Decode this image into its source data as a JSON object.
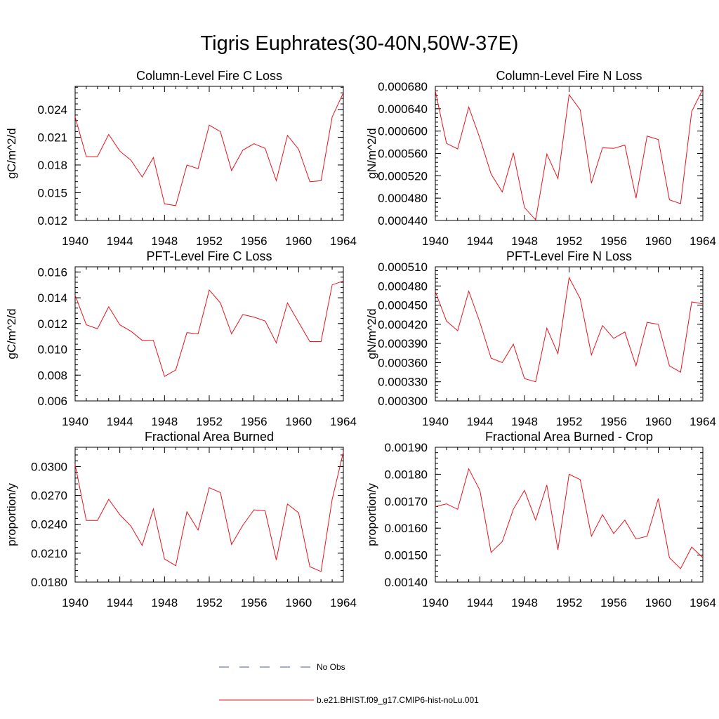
{
  "title": "Tigris Euphrates(30-40N,50W-37E)",
  "colors": {
    "model_line": "#e8141c",
    "obs_line": "#4a5aa8",
    "axis": "#000000"
  },
  "legend": {
    "items": [
      {
        "label": "No Obs",
        "style": "dashed",
        "color": "#4a5aa8"
      },
      {
        "label": "b.e21.BHIST.f09_g17.CMIP6-hist-noLu.001",
        "style": "solid",
        "color": "#e8141c"
      }
    ]
  },
  "chart_data": [
    {
      "type": "line",
      "title": "Column-Level Fire C Loss",
      "ylabel": "gC/m^2/d",
      "xlim": [
        1940,
        1964
      ],
      "ylim": [
        0.012,
        0.0265
      ],
      "xticks": [
        "1940",
        "1944",
        "1948",
        "1952",
        "1956",
        "1960",
        "1964"
      ],
      "yticks": [
        "0.012",
        "0.015",
        "0.018",
        "0.021",
        "0.024"
      ],
      "x": [
        1940,
        1941,
        1942,
        1943,
        1944,
        1945,
        1946,
        1947,
        1948,
        1949,
        1950,
        1951,
        1952,
        1953,
        1954,
        1955,
        1956,
        1957,
        1958,
        1959,
        1960,
        1961,
        1962,
        1963,
        1964
      ],
      "series": [
        {
          "name": "b.e21.BHIST.f09_g17.CMIP6-hist-noLu.001",
          "values": [
            0.0232,
            0.0189,
            0.0189,
            0.0213,
            0.0195,
            0.0185,
            0.0167,
            0.0188,
            0.0138,
            0.0136,
            0.018,
            0.0176,
            0.0223,
            0.0216,
            0.0174,
            0.0196,
            0.0203,
            0.0198,
            0.0163,
            0.0212,
            0.0197,
            0.0162,
            0.0163,
            0.0232,
            0.0258
          ]
        }
      ]
    },
    {
      "type": "line",
      "title": "Column-Level Fire N Loss",
      "ylabel": "gN/m^2/d",
      "xlim": [
        1940,
        1964
      ],
      "ylim": [
        0.00044,
        0.00068
      ],
      "xticks": [
        "1940",
        "1944",
        "1948",
        "1952",
        "1956",
        "1960",
        "1964"
      ],
      "yticks": [
        "0.000440",
        "0.000480",
        "0.000520",
        "0.000560",
        "0.000600",
        "0.000640",
        "0.000680"
      ],
      "x": [
        1940,
        1941,
        1942,
        1943,
        1944,
        1945,
        1946,
        1947,
        1948,
        1949,
        1950,
        1951,
        1952,
        1953,
        1954,
        1955,
        1956,
        1957,
        1958,
        1959,
        1960,
        1961,
        1962,
        1963,
        1964
      ],
      "series": [
        {
          "name": "b.e21.BHIST.f09_g17.CMIP6-hist-noLu.001",
          "values": [
            0.000672,
            0.000578,
            0.000568,
            0.000643,
            0.000587,
            0.000523,
            0.000491,
            0.000561,
            0.000463,
            0.000441,
            0.000559,
            0.000515,
            0.000665,
            0.000638,
            0.000507,
            0.00057,
            0.000569,
            0.000575,
            0.00048,
            0.000591,
            0.000585,
            0.000477,
            0.00047,
            0.000635,
            0.000675
          ]
        }
      ]
    },
    {
      "type": "line",
      "title": "PFT-Level Fire C Loss",
      "ylabel": "gC/m^2/d",
      "xlim": [
        1940,
        1964
      ],
      "ylim": [
        0.006,
        0.0164
      ],
      "xticks": [
        "1940",
        "1944",
        "1948",
        "1952",
        "1956",
        "1960",
        "1964"
      ],
      "yticks": [
        "0.006",
        "0.008",
        "0.010",
        "0.012",
        "0.014",
        "0.016"
      ],
      "x": [
        1940,
        1941,
        1942,
        1943,
        1944,
        1945,
        1946,
        1947,
        1948,
        1949,
        1950,
        1951,
        1952,
        1953,
        1954,
        1955,
        1956,
        1957,
        1958,
        1959,
        1960,
        1961,
        1962,
        1963,
        1964
      ],
      "series": [
        {
          "name": "b.e21.BHIST.f09_g17.CMIP6-hist-noLu.001",
          "values": [
            0.0142,
            0.0119,
            0.0116,
            0.0133,
            0.0119,
            0.0114,
            0.0107,
            0.0107,
            0.0079,
            0.0084,
            0.0113,
            0.0112,
            0.0146,
            0.0136,
            0.0112,
            0.0127,
            0.0125,
            0.0122,
            0.0105,
            0.0136,
            0.0121,
            0.0106,
            0.0106,
            0.015,
            0.0153
          ]
        }
      ]
    },
    {
      "type": "line",
      "title": "PFT-Level Fire N Loss",
      "ylabel": "gN/m^2/d",
      "xlim": [
        1940,
        1964
      ],
      "ylim": [
        0.0003,
        0.00051
      ],
      "xticks": [
        "1940",
        "1944",
        "1948",
        "1952",
        "1956",
        "1960",
        "1964"
      ],
      "yticks": [
        "0.000300",
        "0.000330",
        "0.000360",
        "0.000390",
        "0.000420",
        "0.000450",
        "0.000480",
        "0.000510"
      ],
      "x": [
        1940,
        1941,
        1942,
        1943,
        1944,
        1945,
        1946,
        1947,
        1948,
        1949,
        1950,
        1951,
        1952,
        1953,
        1954,
        1955,
        1956,
        1957,
        1958,
        1959,
        1960,
        1961,
        1962,
        1963,
        1964
      ],
      "series": [
        {
          "name": "b.e21.BHIST.f09_g17.CMIP6-hist-noLu.001",
          "values": [
            0.000471,
            0.000425,
            0.00041,
            0.000472,
            0.000423,
            0.000367,
            0.00036,
            0.000389,
            0.000335,
            0.00033,
            0.000414,
            0.000374,
            0.000493,
            0.00046,
            0.000372,
            0.000418,
            0.000398,
            0.000408,
            0.000355,
            0.000423,
            0.00042,
            0.000355,
            0.000345,
            0.000455,
            0.000452
          ]
        }
      ]
    },
    {
      "type": "line",
      "title": "Fractional Area Burned",
      "ylabel": "proportion/y",
      "xlim": [
        1940,
        1964
      ],
      "ylim": [
        0.018,
        0.032
      ],
      "xticks": [
        "1940",
        "1944",
        "1948",
        "1952",
        "1956",
        "1960",
        "1964"
      ],
      "yticks": [
        "0.0180",
        "0.0210",
        "0.0240",
        "0.0270",
        "0.0300"
      ],
      "x": [
        1940,
        1941,
        1942,
        1943,
        1944,
        1945,
        1946,
        1947,
        1948,
        1949,
        1950,
        1951,
        1952,
        1953,
        1954,
        1955,
        1956,
        1957,
        1958,
        1959,
        1960,
        1961,
        1962,
        1963,
        1964
      ],
      "series": [
        {
          "name": "b.e21.BHIST.f09_g17.CMIP6-hist-noLu.001",
          "values": [
            0.0302,
            0.0244,
            0.0244,
            0.0266,
            0.025,
            0.0238,
            0.0218,
            0.0256,
            0.0204,
            0.0197,
            0.0253,
            0.0234,
            0.0278,
            0.0273,
            0.0219,
            0.0239,
            0.0255,
            0.0254,
            0.0203,
            0.0261,
            0.0252,
            0.0196,
            0.0191,
            0.0266,
            0.0315
          ]
        }
      ]
    },
    {
      "type": "line",
      "title": "Fractional Area Burned - Crop",
      "ylabel": "proportion/y",
      "xlim": [
        1940,
        1964
      ],
      "ylim": [
        0.0014,
        0.0019
      ],
      "xticks": [
        "1940",
        "1944",
        "1948",
        "1952",
        "1956",
        "1960",
        "1964"
      ],
      "yticks": [
        "0.00140",
        "0.00150",
        "0.00160",
        "0.00170",
        "0.00180",
        "0.00190"
      ],
      "x": [
        1940,
        1941,
        1942,
        1943,
        1944,
        1945,
        1946,
        1947,
        1948,
        1949,
        1950,
        1951,
        1952,
        1953,
        1954,
        1955,
        1956,
        1957,
        1958,
        1959,
        1960,
        1961,
        1962,
        1963,
        1964
      ],
      "series": [
        {
          "name": "b.e21.BHIST.f09_g17.CMIP6-hist-noLu.001",
          "values": [
            0.00168,
            0.00169,
            0.00167,
            0.00182,
            0.00174,
            0.00151,
            0.00155,
            0.00167,
            0.00174,
            0.00163,
            0.00176,
            0.00152,
            0.0018,
            0.00178,
            0.00157,
            0.00165,
            0.00158,
            0.00163,
            0.00156,
            0.00157,
            0.00171,
            0.00149,
            0.00145,
            0.00153,
            0.00149
          ]
        }
      ]
    }
  ]
}
